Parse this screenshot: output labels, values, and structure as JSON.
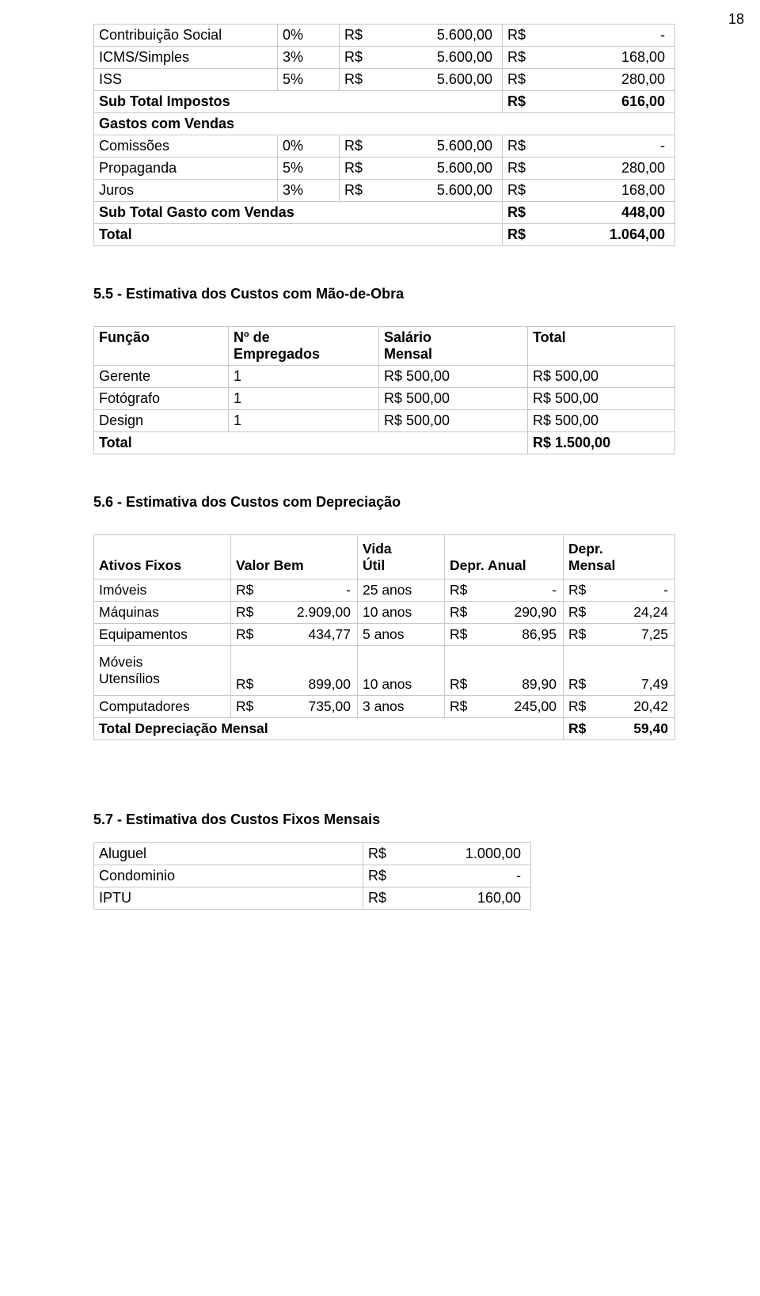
{
  "page_number": "18",
  "currency_prefix": "R$",
  "table1": {
    "rows": [
      {
        "label": "Contribuição Social",
        "pct": "0%",
        "base": "5.600,00",
        "result": "-"
      },
      {
        "label": "ICMS/Simples",
        "pct": "3%",
        "base": "5.600,00",
        "result": "168,00"
      },
      {
        "label": "ISS",
        "pct": "5%",
        "base": "5.600,00",
        "result": "280,00"
      }
    ],
    "subtotal_impostos": {
      "label": "Sub Total Impostos",
      "result": "616,00"
    },
    "gastos_vendas_header": "Gastos com Vendas",
    "gastos_rows": [
      {
        "label": "Comissões",
        "pct": "0%",
        "base": "5.600,00",
        "result": "-"
      },
      {
        "label": "Propaganda",
        "pct": "5%",
        "base": "5.600,00",
        "result": "280,00"
      },
      {
        "label": "Juros",
        "pct": "3%",
        "base": "5.600,00",
        "result": "168,00"
      }
    ],
    "subtotal_gastos": {
      "label": "Sub Total Gasto com Vendas",
      "result": "448,00"
    },
    "total": {
      "label": "Total",
      "result": "1.064,00"
    }
  },
  "section_55": {
    "title": "5.5 - Estimativa dos Custos com Mão-de-Obra",
    "headers": [
      "Função",
      "Nº de Empregados",
      "Salário Mensal",
      "Total"
    ],
    "rows": [
      {
        "funcao": "Gerente",
        "n": "1",
        "sal": "R$ 500,00",
        "tot": "R$ 500,00"
      },
      {
        "funcao": "Fotógrafo",
        "n": "1",
        "sal": "R$ 500,00",
        "tot": "R$ 500,00"
      },
      {
        "funcao": "Design",
        "n": "1",
        "sal": "R$ 500,00",
        "tot": "R$ 500,00"
      }
    ],
    "total_label": "Total",
    "total_value": "R$ 1.500,00"
  },
  "section_56": {
    "title": "5.6 - Estimativa dos Custos com Depreciação",
    "headers": [
      "Ativos Fixos",
      "Valor Bem",
      "Vida Útil",
      "Depr. Anual",
      "Depr. Mensal"
    ],
    "rows": [
      {
        "nome": "Imóveis",
        "valor": "-",
        "vida": "25 anos",
        "anual": "-",
        "mensal": "-"
      },
      {
        "nome": "Máquinas",
        "valor": "2.909,00",
        "vida": "10 anos",
        "anual": "290,90",
        "mensal": "24,24"
      },
      {
        "nome": "Equipamentos",
        "valor": "434,77",
        "vida": "5 anos",
        "anual": "86,95",
        "mensal": "7,25"
      },
      {
        "nome": "Móveis Utensílios",
        "valor": "899,00",
        "vida": "10 anos",
        "anual": "89,90",
        "mensal": "7,49"
      },
      {
        "nome": "Computadores",
        "valor": "735,00",
        "vida": "3 anos",
        "anual": "245,00",
        "mensal": "20,42"
      }
    ],
    "total_label": "Total Depreciação Mensal",
    "total_value": "59,40"
  },
  "section_57": {
    "title": "5.7 - Estimativa dos Custos Fixos Mensais",
    "rows": [
      {
        "label": "Aluguel",
        "value": "1.000,00"
      },
      {
        "label": "Condominio",
        "value": "-"
      },
      {
        "label": "IPTU",
        "value": "160,00"
      }
    ]
  }
}
